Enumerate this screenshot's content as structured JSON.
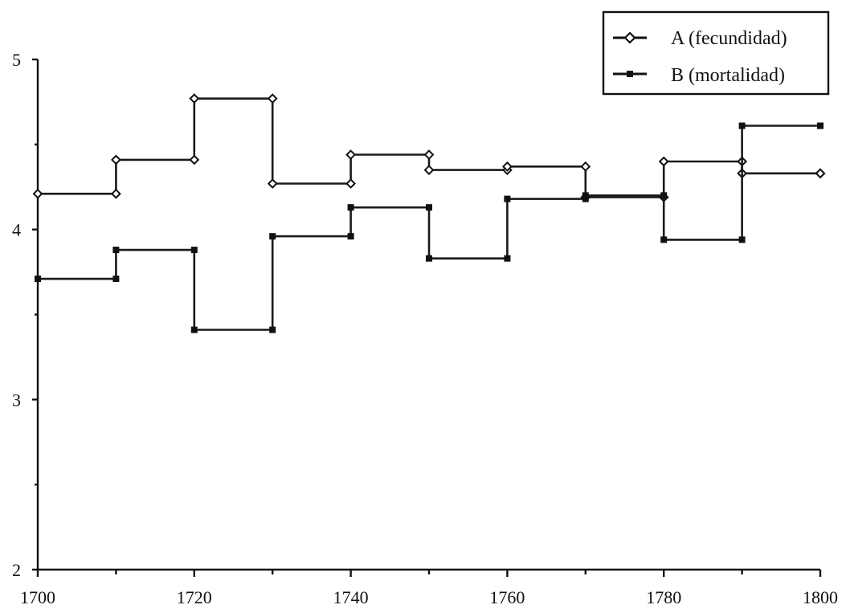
{
  "chart_data": {
    "type": "line",
    "title": "",
    "xlabel": "",
    "ylabel": "",
    "xlim": [
      1700,
      1800
    ],
    "ylim": [
      2,
      5
    ],
    "x_ticks": [
      "1700",
      "1720",
      "1740",
      "1760",
      "1780",
      "1800"
    ],
    "y_ticks": [
      "2",
      "3",
      "4",
      "5"
    ],
    "grid": false,
    "legend_position": "top-right",
    "step": true,
    "series": [
      {
        "name": "A (fecundidad)",
        "marker": "open-diamond",
        "x": [
          1700,
          1710,
          1720,
          1730,
          1740,
          1750,
          1760,
          1770,
          1780,
          1790,
          1800
        ],
        "values": [
          4.21,
          4.41,
          4.77,
          4.27,
          4.44,
          4.35,
          4.37,
          4.19,
          4.4,
          4.33,
          4.33
        ]
      },
      {
        "name": "B (mortalidad)",
        "marker": "filled-square",
        "x": [
          1700,
          1710,
          1720,
          1730,
          1740,
          1750,
          1760,
          1770,
          1780,
          1790,
          1800
        ],
        "values": [
          3.71,
          3.88,
          3.41,
          3.96,
          4.13,
          3.83,
          4.18,
          4.2,
          3.94,
          4.61,
          4.61
        ]
      }
    ]
  }
}
